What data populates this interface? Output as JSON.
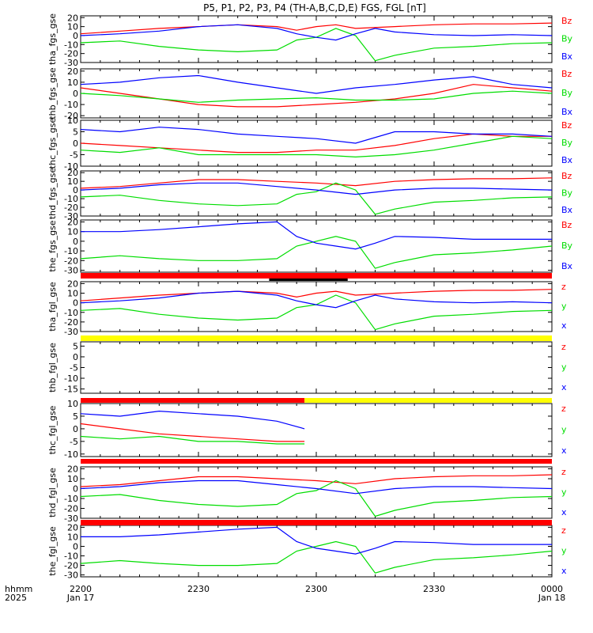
{
  "title": "P5, P1, P2, P3, P4 (TH-A,B,C,D,E) FGS, FGL [nT]",
  "x_axis": {
    "label_lines": [
      "hhmm",
      "2025"
    ],
    "ticks": [
      {
        "time": "2200",
        "date": "Jan 17"
      },
      {
        "time": "2230",
        "date": ""
      },
      {
        "time": "2300",
        "date": ""
      },
      {
        "time": "2330",
        "date": ""
      },
      {
        "time": "0000",
        "date": "Jan 18"
      }
    ]
  },
  "colors": {
    "z": "#ff0000",
    "y": "#00dd00",
    "x": "#0000ff",
    "bar_red": "#ff0000",
    "bar_yellow": "#ffff00",
    "bar_black": "#000000"
  },
  "chart_data": [
    {
      "type": "line",
      "panel": "tha_fgs_gse",
      "ylabel": "tha_fgs_gse",
      "yticks": [
        "20",
        "10",
        "0",
        "-10",
        "-20",
        "-30"
      ],
      "ylim": [
        -30,
        22
      ],
      "legend": [
        "Bz",
        "By",
        "Bx"
      ],
      "x_range_utc": [
        "22:00",
        "24:00"
      ],
      "series": [
        {
          "name": "Bz",
          "color": "#ff0000",
          "x": [
            0,
            10,
            20,
            30,
            40,
            50,
            55,
            60,
            65,
            70,
            80,
            90,
            100,
            110,
            120
          ],
          "y": [
            2,
            5,
            8,
            10,
            12,
            10,
            6,
            10,
            12,
            8,
            10,
            12,
            13,
            13,
            14
          ]
        },
        {
          "name": "By",
          "color": "#00dd00",
          "x": [
            0,
            10,
            20,
            30,
            40,
            50,
            55,
            60,
            65,
            70,
            75,
            80,
            90,
            100,
            110,
            120
          ],
          "y": [
            -8,
            -6,
            -12,
            -16,
            -18,
            -16,
            -5,
            -2,
            8,
            0,
            -28,
            -22,
            -14,
            -12,
            -9,
            -8
          ]
        },
        {
          "name": "Bx",
          "color": "#0000ff",
          "x": [
            0,
            10,
            20,
            30,
            40,
            50,
            55,
            60,
            65,
            70,
            75,
            80,
            90,
            100,
            110,
            120
          ],
          "y": [
            0,
            2,
            5,
            10,
            12,
            8,
            2,
            -2,
            -5,
            2,
            8,
            4,
            1,
            0,
            1,
            0
          ]
        }
      ]
    },
    {
      "type": "line",
      "panel": "thb_fgs_gse",
      "ylabel": "thb_fgs_gse",
      "yticks": [
        "20",
        "10",
        "0",
        "-10",
        "-20"
      ],
      "ylim": [
        -22,
        22
      ],
      "legend": [
        "Bz",
        "By",
        "Bx"
      ],
      "x_range_utc": [
        "22:00",
        "24:00"
      ],
      "series": [
        {
          "name": "Bz",
          "color": "#ff0000",
          "x": [
            0,
            10,
            20,
            30,
            40,
            50,
            60,
            70,
            80,
            90,
            100,
            110,
            120
          ],
          "y": [
            5,
            0,
            -5,
            -10,
            -12,
            -12,
            -10,
            -8,
            -5,
            0,
            8,
            5,
            2
          ]
        },
        {
          "name": "By",
          "color": "#00dd00",
          "x": [
            0,
            10,
            20,
            30,
            40,
            50,
            60,
            70,
            80,
            90,
            100,
            110,
            120
          ],
          "y": [
            0,
            -2,
            -5,
            -8,
            -6,
            -5,
            -4,
            -6,
            -6,
            -5,
            0,
            2,
            0
          ]
        },
        {
          "name": "Bx",
          "color": "#0000ff",
          "x": [
            0,
            10,
            20,
            30,
            40,
            50,
            60,
            70,
            80,
            90,
            100,
            110,
            120
          ],
          "y": [
            8,
            10,
            14,
            16,
            10,
            5,
            0,
            5,
            8,
            12,
            15,
            8,
            5
          ]
        }
      ]
    },
    {
      "type": "line",
      "panel": "thc_fgs_gse",
      "ylabel": "thc_fgs_gse",
      "yticks": [
        "10",
        "5",
        "0",
        "-5",
        "-10"
      ],
      "ylim": [
        -10,
        10
      ],
      "legend": [
        "Bz",
        "By",
        "Bx"
      ],
      "x_range_utc": [
        "22:00",
        "24:00"
      ],
      "series": [
        {
          "name": "Bz",
          "color": "#ff0000",
          "x": [
            0,
            10,
            20,
            30,
            40,
            50,
            60,
            70,
            80,
            90,
            100,
            110,
            120
          ],
          "y": [
            0,
            -1,
            -2,
            -3,
            -4,
            -4,
            -3,
            -3,
            -1,
            2,
            4,
            3,
            3
          ]
        },
        {
          "name": "By",
          "color": "#00dd00",
          "x": [
            0,
            10,
            20,
            30,
            40,
            50,
            60,
            70,
            80,
            90,
            100,
            110,
            120
          ],
          "y": [
            -3,
            -4,
            -2,
            -5,
            -5,
            -5,
            -5,
            -6,
            -5,
            -3,
            0,
            3,
            2
          ]
        },
        {
          "name": "Bx",
          "color": "#0000ff",
          "x": [
            0,
            10,
            20,
            30,
            40,
            50,
            60,
            70,
            80,
            90,
            100,
            110,
            120
          ],
          "y": [
            6,
            5,
            7,
            6,
            4,
            3,
            2,
            0,
            5,
            5,
            4,
            4,
            3
          ]
        }
      ]
    },
    {
      "type": "line",
      "panel": "thd_fgs_gse",
      "ylabel": "thd_fgs_gse",
      "yticks": [
        "20",
        "10",
        "0",
        "-10",
        "-20",
        "-30"
      ],
      "ylim": [
        -30,
        22
      ],
      "legend": [
        "Bz",
        "By",
        "Bx"
      ],
      "x_range_utc": [
        "22:00",
        "24:00"
      ],
      "series": [
        {
          "name": "Bz",
          "color": "#ff0000",
          "x": [
            0,
            10,
            20,
            30,
            40,
            50,
            60,
            70,
            80,
            90,
            100,
            110,
            120
          ],
          "y": [
            2,
            4,
            8,
            12,
            12,
            10,
            8,
            5,
            10,
            12,
            13,
            13,
            14
          ]
        },
        {
          "name": "By",
          "color": "#00dd00",
          "x": [
            0,
            10,
            20,
            30,
            40,
            50,
            55,
            60,
            65,
            70,
            75,
            80,
            90,
            100,
            110,
            120
          ],
          "y": [
            -8,
            -6,
            -12,
            -16,
            -18,
            -16,
            -5,
            -2,
            8,
            0,
            -28,
            -22,
            -14,
            -12,
            -9,
            -8
          ]
        },
        {
          "name": "Bx",
          "color": "#0000ff",
          "x": [
            0,
            10,
            20,
            30,
            40,
            50,
            60,
            70,
            80,
            90,
            100,
            110,
            120
          ],
          "y": [
            0,
            2,
            6,
            8,
            8,
            4,
            0,
            -5,
            0,
            2,
            2,
            1,
            0
          ]
        }
      ]
    },
    {
      "type": "line",
      "panel": "the_fgs_gse",
      "ylabel": "the_fgs_gse",
      "yticks": [
        "20",
        "10",
        "0",
        "-10",
        "-20",
        "-30"
      ],
      "ylim": [
        -32,
        22
      ],
      "legend": [
        "Bz",
        "By",
        "Bx"
      ],
      "x_range_utc": [
        "22:00",
        "24:00"
      ],
      "series": [
        {
          "name": "By",
          "color": "#00dd00",
          "x": [
            0,
            10,
            20,
            30,
            40,
            50,
            55,
            60,
            65,
            70,
            75,
            80,
            90,
            100,
            110,
            120
          ],
          "y": [
            -18,
            -15,
            -18,
            -20,
            -20,
            -18,
            -5,
            0,
            5,
            0,
            -28,
            -22,
            -14,
            -12,
            -9,
            -5
          ]
        },
        {
          "name": "Bx",
          "color": "#0000ff",
          "x": [
            0,
            10,
            20,
            30,
            40,
            50,
            55,
            60,
            65,
            70,
            75,
            80,
            90,
            100,
            110,
            120
          ],
          "y": [
            10,
            10,
            12,
            15,
            18,
            20,
            5,
            -2,
            -5,
            -8,
            -2,
            5,
            4,
            2,
            2,
            2
          ]
        }
      ]
    },
    {
      "type": "line",
      "panel": "tha_fgl_gse",
      "ylabel": "tha_fgl_gse",
      "yticks": [
        "20",
        "10",
        "0",
        "-10",
        "-20",
        "-30"
      ],
      "ylim": [
        -30,
        22
      ],
      "legend": [
        "z",
        "y",
        "x"
      ],
      "x_range_utc": [
        "22:00",
        "24:00"
      ],
      "series": [
        {
          "name": "z",
          "color": "#ff0000",
          "x": [
            0,
            10,
            20,
            30,
            40,
            50,
            55,
            60,
            65,
            70,
            80,
            90,
            100,
            110,
            120
          ],
          "y": [
            2,
            5,
            8,
            10,
            12,
            10,
            6,
            10,
            12,
            8,
            10,
            12,
            13,
            13,
            14
          ]
        },
        {
          "name": "y",
          "color": "#00dd00",
          "x": [
            0,
            10,
            20,
            30,
            40,
            50,
            55,
            60,
            65,
            70,
            75,
            80,
            90,
            100,
            110,
            120
          ],
          "y": [
            -8,
            -6,
            -12,
            -16,
            -18,
            -16,
            -5,
            -2,
            8,
            0,
            -28,
            -22,
            -14,
            -12,
            -9,
            -8
          ]
        },
        {
          "name": "x",
          "color": "#0000ff",
          "x": [
            0,
            10,
            20,
            30,
            40,
            50,
            55,
            60,
            65,
            70,
            75,
            80,
            90,
            100,
            110,
            120
          ],
          "y": [
            0,
            2,
            5,
            10,
            12,
            8,
            2,
            -2,
            -5,
            2,
            8,
            4,
            1,
            0,
            1,
            0
          ]
        }
      ]
    },
    {
      "type": "line",
      "panel": "thb_fgl_gse",
      "ylabel": "thb_fgl_gse",
      "yticks": [
        "5",
        "0",
        "-5",
        "-10",
        "-15"
      ],
      "ylim": [
        -17,
        7
      ],
      "legend": [
        "z",
        "y",
        "x"
      ],
      "x_range_utc": [
        "22:00",
        "24:00"
      ],
      "series": []
    },
    {
      "type": "line",
      "panel": "thc_fgl_gse",
      "ylabel": "thc_fgl_gse",
      "yticks": [
        "10",
        "5",
        "0",
        "-5",
        "-10"
      ],
      "ylim": [
        -11,
        10
      ],
      "legend": [
        "z",
        "y",
        "x"
      ],
      "x_range_utc": [
        "22:00",
        "22:57"
      ],
      "series": [
        {
          "name": "z",
          "color": "#ff0000",
          "x": [
            0,
            10,
            20,
            30,
            40,
            50,
            57
          ],
          "y": [
            2,
            0,
            -2,
            -3,
            -4,
            -5,
            -5
          ]
        },
        {
          "name": "y",
          "color": "#00dd00",
          "x": [
            0,
            10,
            20,
            30,
            40,
            50,
            57
          ],
          "y": [
            -3,
            -4,
            -3,
            -5,
            -5,
            -6,
            -6
          ]
        },
        {
          "name": "x",
          "color": "#0000ff",
          "x": [
            0,
            10,
            20,
            30,
            40,
            50,
            57
          ],
          "y": [
            6,
            5,
            7,
            6,
            5,
            3,
            0
          ]
        }
      ]
    },
    {
      "type": "line",
      "panel": "thd_fgl_gse",
      "ylabel": "thd_fgl_gse",
      "yticks": [
        "20",
        "10",
        "0",
        "-10",
        "-20",
        "-30"
      ],
      "ylim": [
        -30,
        22
      ],
      "legend": [
        "z",
        "y",
        "x"
      ],
      "x_range_utc": [
        "22:00",
        "24:00"
      ],
      "series": [
        {
          "name": "z",
          "color": "#ff0000",
          "x": [
            0,
            10,
            20,
            30,
            40,
            50,
            60,
            70,
            80,
            90,
            100,
            110,
            120
          ],
          "y": [
            2,
            4,
            8,
            12,
            12,
            10,
            8,
            5,
            10,
            12,
            13,
            13,
            14
          ]
        },
        {
          "name": "y",
          "color": "#00dd00",
          "x": [
            0,
            10,
            20,
            30,
            40,
            50,
            55,
            60,
            65,
            70,
            75,
            80,
            90,
            100,
            110,
            120
          ],
          "y": [
            -8,
            -6,
            -12,
            -16,
            -18,
            -16,
            -5,
            -2,
            8,
            0,
            -28,
            -22,
            -14,
            -12,
            -9,
            -8
          ]
        },
        {
          "name": "x",
          "color": "#0000ff",
          "x": [
            0,
            10,
            20,
            30,
            40,
            50,
            60,
            70,
            80,
            90,
            100,
            110,
            120
          ],
          "y": [
            0,
            2,
            6,
            8,
            8,
            4,
            0,
            -5,
            0,
            2,
            2,
            1,
            0
          ]
        }
      ]
    },
    {
      "type": "line",
      "panel": "the_fgl_gse",
      "ylabel": "the_fgl_gse",
      "yticks": [
        "20",
        "10",
        "0",
        "-10",
        "-20",
        "-30"
      ],
      "ylim": [
        -32,
        22
      ],
      "legend": [
        "z",
        "y",
        "x"
      ],
      "x_range_utc": [
        "22:00",
        "24:00"
      ],
      "series": [
        {
          "name": "y",
          "color": "#00dd00",
          "x": [
            0,
            10,
            20,
            30,
            40,
            50,
            55,
            60,
            65,
            70,
            75,
            80,
            90,
            100,
            110,
            120
          ],
          "y": [
            -18,
            -15,
            -18,
            -20,
            -20,
            -18,
            -5,
            0,
            5,
            0,
            -28,
            -22,
            -14,
            -12,
            -9,
            -5
          ]
        },
        {
          "name": "x",
          "color": "#0000ff",
          "x": [
            0,
            10,
            20,
            30,
            40,
            50,
            55,
            60,
            65,
            70,
            75,
            80,
            90,
            100,
            110,
            120
          ],
          "y": [
            10,
            10,
            12,
            15,
            18,
            20,
            5,
            -2,
            -5,
            -8,
            -2,
            5,
            4,
            2,
            2,
            2
          ]
        }
      ]
    }
  ],
  "status_bars": [
    {
      "after_panel": 4,
      "segments": [
        {
          "color": "red",
          "from_min": 0,
          "to_min": 120
        }
      ],
      "black_marks": [
        {
          "from_min": 48,
          "to_min": 68
        }
      ]
    },
    {
      "after_panel": 5,
      "segments": [
        {
          "color": "yellow",
          "from_min": 0,
          "to_min": 120
        }
      ]
    },
    {
      "after_panel": 6,
      "segments": [
        {
          "color": "red",
          "from_min": 0,
          "to_min": 57
        },
        {
          "color": "yellow",
          "from_min": 57,
          "to_min": 120
        }
      ]
    },
    {
      "after_panel": 7,
      "segments": [
        {
          "color": "red",
          "from_min": 0,
          "to_min": 120
        }
      ]
    },
    {
      "after_panel": 8,
      "segments": [
        {
          "color": "red",
          "from_min": 0,
          "to_min": 120
        }
      ]
    }
  ]
}
